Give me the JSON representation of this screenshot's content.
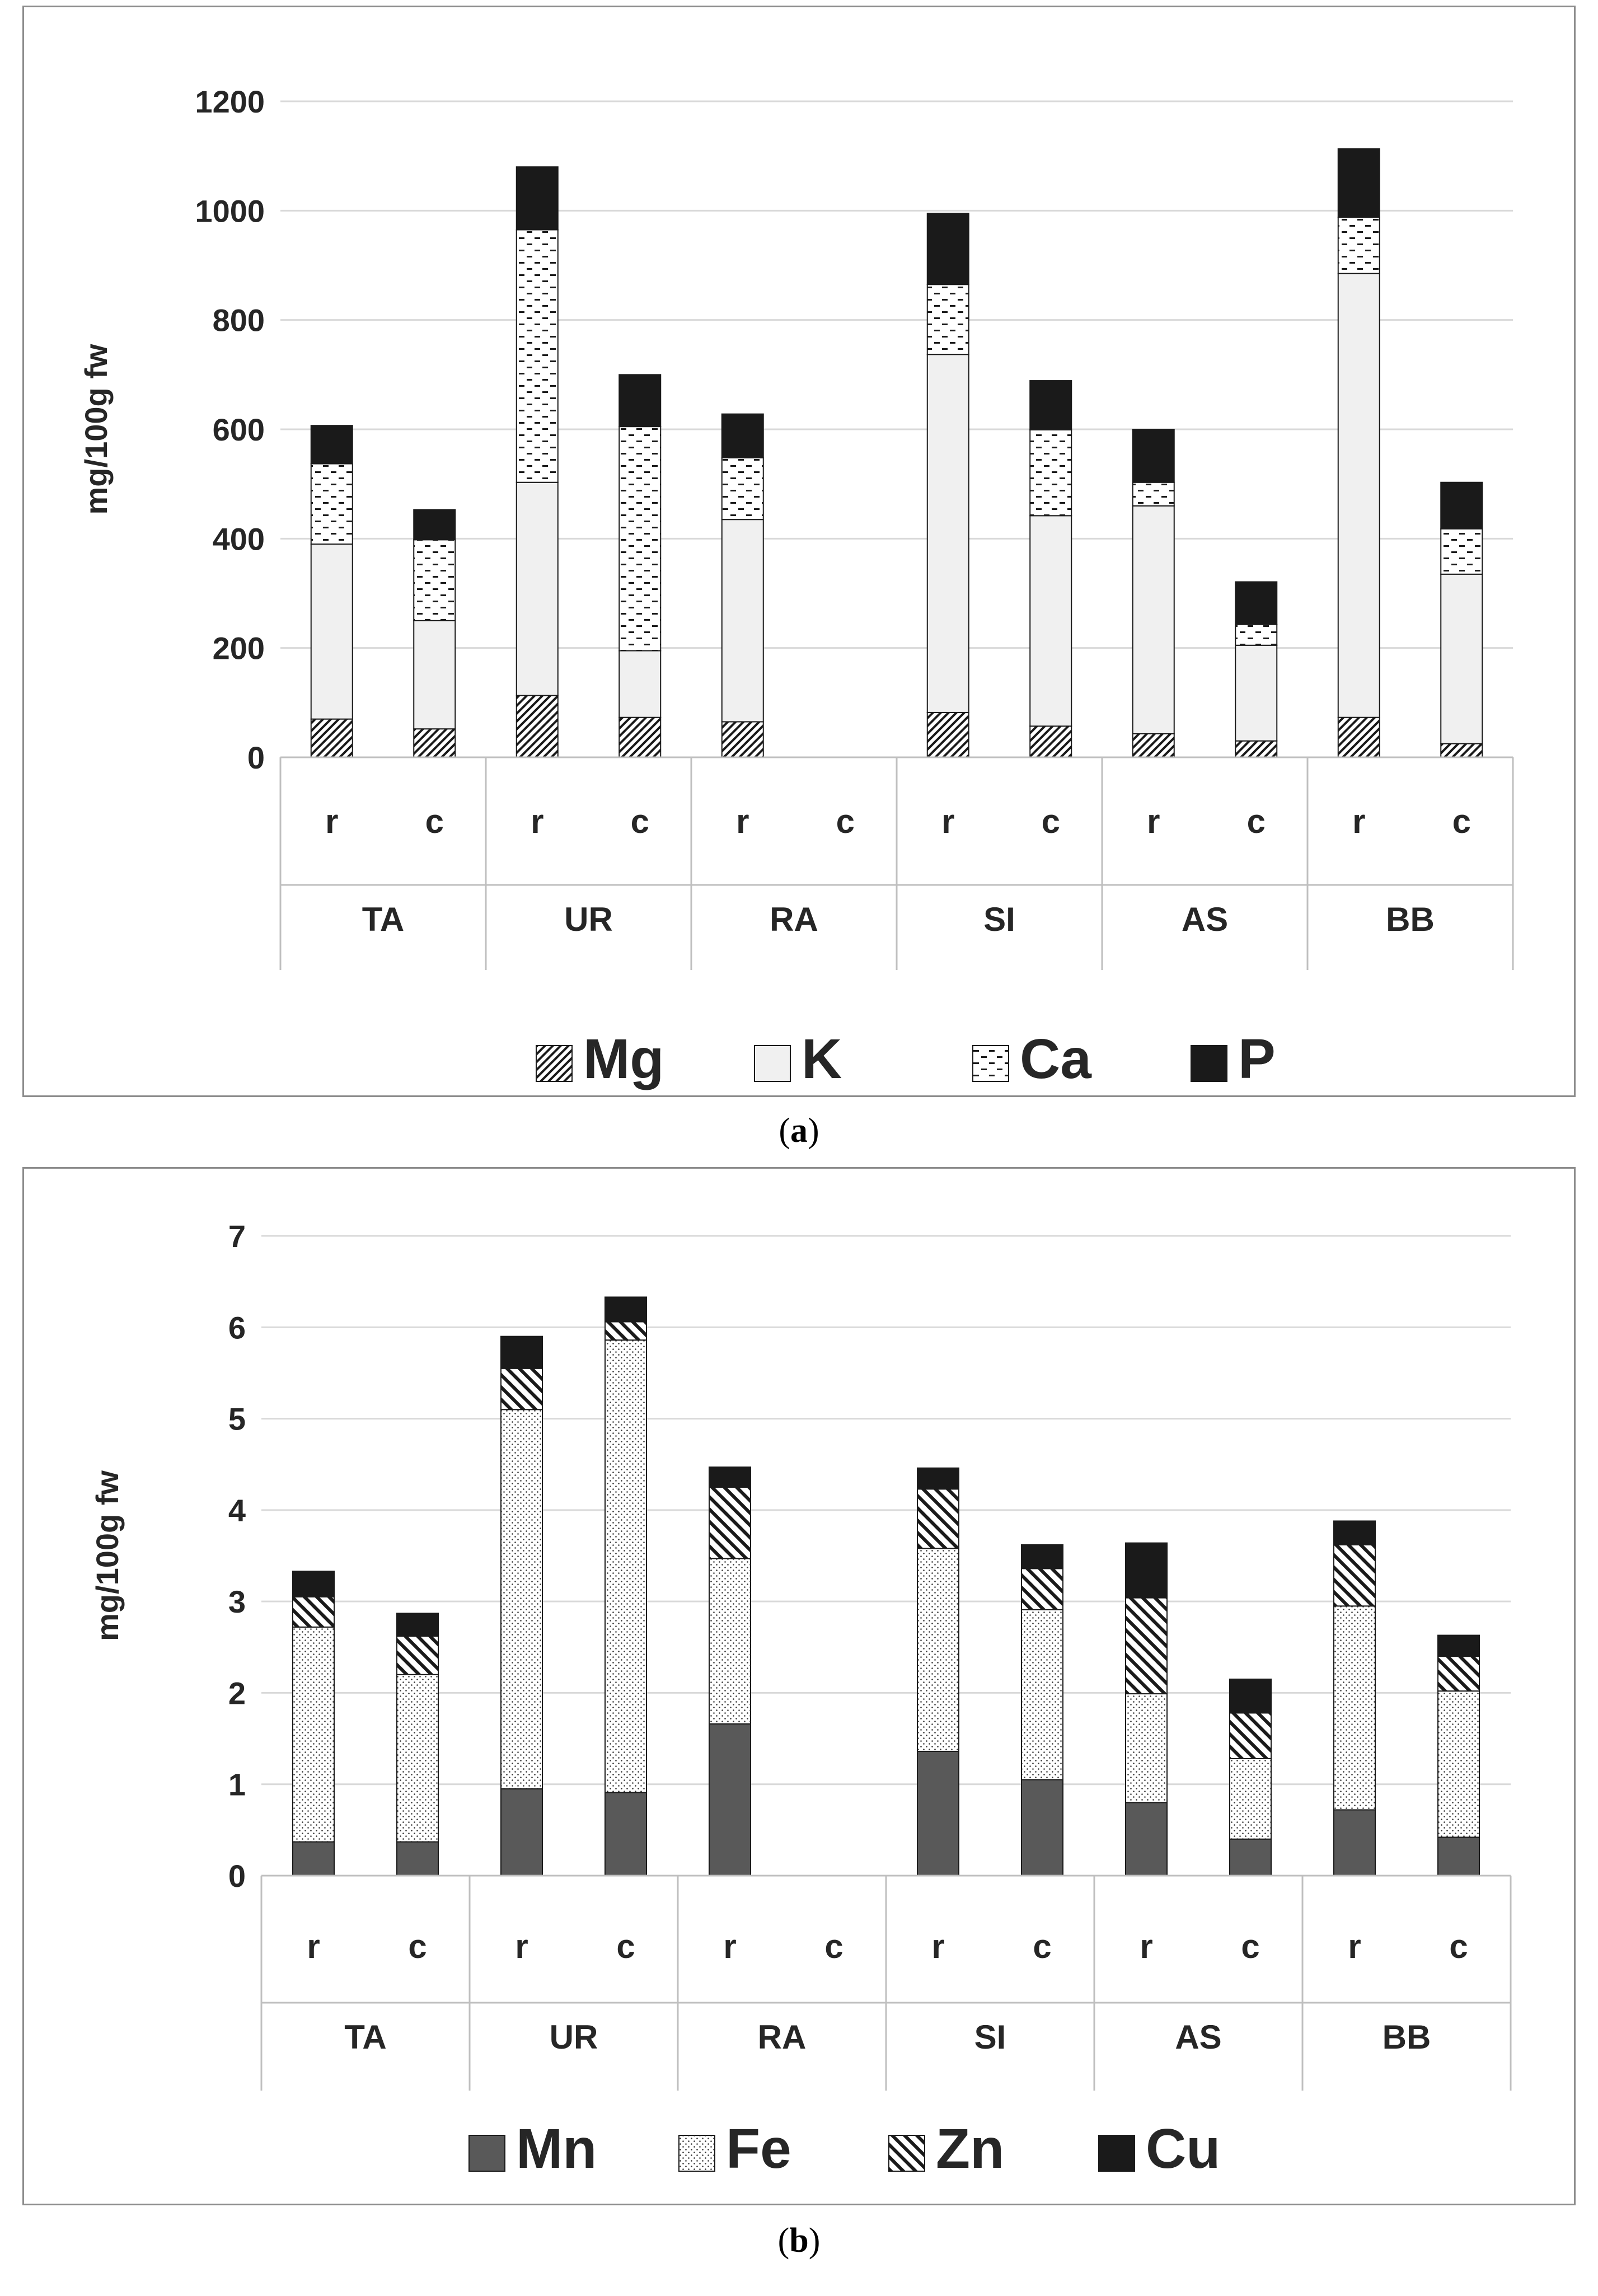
{
  "chart_data": [
    {
      "type": "stacked-bar",
      "panel_label": "a",
      "ylabel": "mg/100g fw",
      "ylim": [
        0,
        1200
      ],
      "yticks": [
        0,
        200,
        400,
        600,
        800,
        1000,
        1200
      ],
      "grid": true,
      "legend_position": "bottom",
      "groups": [
        "TA",
        "UR",
        "RA",
        "SI",
        "AS",
        "BB"
      ],
      "subcategories": [
        "r",
        "c"
      ],
      "series": [
        {
          "name": "Mg",
          "pattern": "diag-hatch",
          "values": [
            70,
            52,
            113,
            73,
            65,
            null,
            82,
            57,
            43,
            30,
            73,
            25
          ]
        },
        {
          "name": "K",
          "pattern": "solid-light",
          "values": [
            320,
            198,
            390,
            122,
            370,
            null,
            655,
            385,
            417,
            175,
            812,
            310
          ]
        },
        {
          "name": "Ca",
          "pattern": "dash-dots",
          "values": [
            147,
            148,
            462,
            410,
            113,
            null,
            128,
            157,
            43,
            38,
            103,
            83
          ]
        },
        {
          "name": "P",
          "pattern": "solid-black",
          "values": [
            70,
            55,
            115,
            95,
            80,
            null,
            130,
            90,
            97,
            78,
            125,
            85
          ]
        }
      ]
    },
    {
      "type": "stacked-bar",
      "panel_label": "b",
      "ylabel": "mg/100g fw",
      "ylim": [
        0,
        7
      ],
      "yticks": [
        0,
        1,
        2,
        3,
        4,
        5,
        6,
        7
      ],
      "grid": true,
      "legend_position": "bottom",
      "groups": [
        "TA",
        "UR",
        "RA",
        "SI",
        "AS",
        "BB"
      ],
      "subcategories": [
        "r",
        "c"
      ],
      "series": [
        {
          "name": "Mn",
          "pattern": "solid-dark",
          "values": [
            0.37,
            0.37,
            0.95,
            0.91,
            1.66,
            null,
            1.36,
            1.05,
            0.8,
            0.4,
            0.72,
            0.42
          ]
        },
        {
          "name": "Fe",
          "pattern": "dots",
          "values": [
            2.35,
            1.83,
            4.15,
            4.95,
            1.81,
            null,
            2.22,
            1.86,
            1.19,
            0.88,
            2.23,
            1.6
          ]
        },
        {
          "name": "Zn",
          "pattern": "back-diag-hatch",
          "values": [
            0.33,
            0.42,
            0.45,
            0.2,
            0.78,
            null,
            0.65,
            0.45,
            1.05,
            0.5,
            0.67,
            0.38
          ]
        },
        {
          "name": "Cu",
          "pattern": "solid-black",
          "values": [
            0.28,
            0.25,
            0.35,
            0.27,
            0.22,
            null,
            0.23,
            0.26,
            0.6,
            0.37,
            0.26,
            0.23
          ]
        }
      ]
    }
  ],
  "captions": {
    "a": {
      "open": "(",
      "label": "a",
      "close": ")"
    },
    "b": {
      "open": "(",
      "label": "b",
      "close": ")"
    }
  },
  "colors": {
    "hatch_stroke": "#1a1a1a",
    "light_fill": "#f0f0f0",
    "dark_fill": "#595959",
    "black_fill": "#1a1a1a",
    "grid": "#d9d9d9",
    "axis": "#bfbfbf",
    "text": "#262626"
  }
}
